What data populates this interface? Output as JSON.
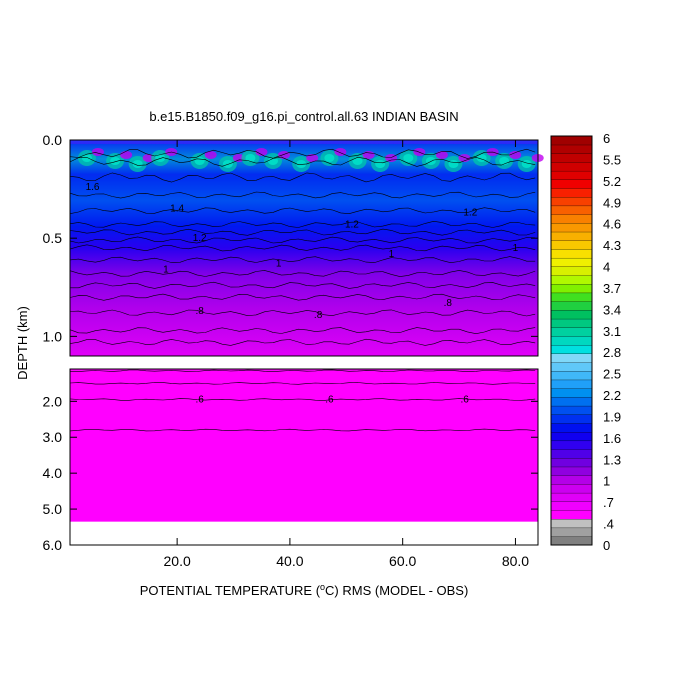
{
  "chart_data": {
    "type": "heatmap",
    "title": "b.e15.B1850.f09_g16.pi_control.all.63 INDIAN BASIN",
    "xlabel": {
      "pre": "POTENTIAL TEMPERATURE (",
      "sup": "o",
      "post": "C) RMS (MODEL - OBS)"
    },
    "ylabel": "DEPTH (km)",
    "xlim": [
      1,
      84
    ],
    "x_ticks": [
      {
        "value": 20,
        "label": "20.0"
      },
      {
        "value": 40,
        "label": "40.0"
      },
      {
        "value": 60,
        "label": "60.0"
      },
      {
        "value": 80,
        "label": "80.0"
      }
    ],
    "upper_panel": {
      "ylim": [
        0.0,
        1.1
      ],
      "y_ticks": [
        {
          "value": 0.0,
          "label": "0.0"
        },
        {
          "value": 0.5,
          "label": "0.5"
        },
        {
          "value": 1.0,
          "label": "1.0"
        }
      ]
    },
    "lower_panel": {
      "ylim": [
        1.1,
        6.0
      ],
      "y_ticks": [
        {
          "value": 2.0,
          "label": "2.0"
        },
        {
          "value": 3.0,
          "label": "3.0"
        },
        {
          "value": 4.0,
          "label": "4.0"
        },
        {
          "value": 5.0,
          "label": "5.0"
        },
        {
          "value": 6.0,
          "label": "6.0"
        }
      ],
      "data_bottom_depth": 5.35
    },
    "depth_profile": [
      {
        "depth": 0.05,
        "value": 1.7
      },
      {
        "depth": 0.1,
        "value": 1.9
      },
      {
        "depth": 0.2,
        "value": 1.5
      },
      {
        "depth": 0.3,
        "value": 1.45
      },
      {
        "depth": 0.4,
        "value": 1.3
      },
      {
        "depth": 0.5,
        "value": 1.1
      },
      {
        "depth": 0.6,
        "value": 1.0
      },
      {
        "depth": 0.7,
        "value": 0.95
      },
      {
        "depth": 0.8,
        "value": 0.85
      },
      {
        "depth": 0.9,
        "value": 0.8
      },
      {
        "depth": 1.0,
        "value": 0.75
      },
      {
        "depth": 1.1,
        "value": 0.7
      },
      {
        "depth": 1.5,
        "value": 0.65
      },
      {
        "depth": 2.0,
        "value": 0.6
      },
      {
        "depth": 3.0,
        "value": 0.58
      },
      {
        "depth": 5.3,
        "value": 0.55
      }
    ],
    "contour_labels": [
      {
        "text": "1.6",
        "x": 5,
        "depth": 0.24
      },
      {
        "text": "1.4",
        "x": 20,
        "depth": 0.35
      },
      {
        "text": "1.2",
        "x": 24,
        "depth": 0.5
      },
      {
        "text": "1.2",
        "x": 51,
        "depth": 0.43
      },
      {
        "text": "1.2",
        "x": 72,
        "depth": 0.37
      },
      {
        "text": "1",
        "x": 18,
        "depth": 0.66
      },
      {
        "text": "1",
        "x": 38,
        "depth": 0.63
      },
      {
        "text": "1",
        "x": 58,
        "depth": 0.58
      },
      {
        "text": "1",
        "x": 80,
        "depth": 0.55
      },
      {
        "text": ".8",
        "x": 24,
        "depth": 0.87
      },
      {
        "text": ".8",
        "x": 45,
        "depth": 0.89
      },
      {
        "text": ".8",
        "x": 68,
        "depth": 0.83
      },
      {
        "text": ".6",
        "x": 24,
        "depth": 1.95
      },
      {
        "text": ".6",
        "x": 47,
        "depth": 1.95
      },
      {
        "text": ".6",
        "x": 71,
        "depth": 1.95
      }
    ],
    "colorbar": {
      "labels": [
        {
          "value": 6,
          "label": "6"
        },
        {
          "value": 5.5,
          "label": "5.5"
        },
        {
          "value": 5.2,
          "label": "5.2"
        },
        {
          "value": 4.9,
          "label": "4.9"
        },
        {
          "value": 4.6,
          "label": "4.6"
        },
        {
          "value": 4.3,
          "label": "4.3"
        },
        {
          "value": 4,
          "label": "4"
        },
        {
          "value": 3.7,
          "label": "3.7"
        },
        {
          "value": 3.4,
          "label": "3.4"
        },
        {
          "value": 3.1,
          "label": "3.1"
        },
        {
          "value": 2.8,
          "label": "2.8"
        },
        {
          "value": 2.5,
          "label": "2.5"
        },
        {
          "value": 2.2,
          "label": "2.2"
        },
        {
          "value": 1.9,
          "label": "1.9"
        },
        {
          "value": 1.6,
          "label": "1.6"
        },
        {
          "value": 1.3,
          "label": "1.3"
        },
        {
          "value": 1,
          "label": "1"
        },
        {
          "value": 0.7,
          "label": ".7"
        },
        {
          "value": 0.4,
          "label": ".4"
        },
        {
          "value": 0,
          "label": "0"
        }
      ],
      "colors": [
        "#808080",
        "#a0a0a0",
        "#c0c0c0",
        "#ff00ff",
        "#f000ff",
        "#e000f8",
        "#cc00f0",
        "#b400e8",
        "#9000e0",
        "#7000e0",
        "#5000e8",
        "#3000f0",
        "#1000f0",
        "#0010f0",
        "#0030f0",
        "#0050f0",
        "#0070f0",
        "#0090f0",
        "#20a0f8",
        "#40b8f8",
        "#60c8f8",
        "#80d8f8",
        "#00e0e0",
        "#00d8c0",
        "#00d0a0",
        "#00c880",
        "#00c060",
        "#20d040",
        "#40e020",
        "#80f000",
        "#b0f800",
        "#d8f000",
        "#f0f000",
        "#f8e000",
        "#f8c800",
        "#f8b000",
        "#f89800",
        "#f88000",
        "#f86000",
        "#f84000",
        "#f82000",
        "#f00000",
        "#e00000",
        "#d00000",
        "#c00000",
        "#b00000",
        "#a00000"
      ]
    }
  }
}
